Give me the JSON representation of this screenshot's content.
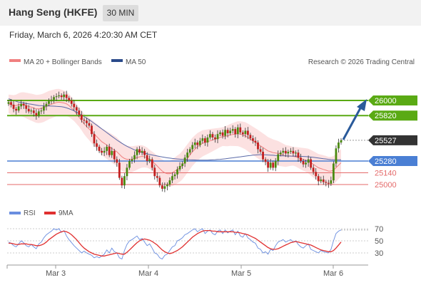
{
  "header": {
    "title": "Hang Seng (HKFE)",
    "timeframe": "30 MIN",
    "datetime": "Friday, March 6, 2026 4:20:30 AM CET"
  },
  "legend": {
    "bollinger": "MA 20 + Bollinger Bands",
    "ma50": "MA 50",
    "credit": "Research © 2026 Trading Central",
    "rsi": "RSI",
    "rsi_ma": "9MA"
  },
  "colors": {
    "bullish_level": "#5aaa14",
    "pivot_level": "#4a7fd4",
    "bearish_level": "#e46a6a",
    "current_price": "#333333",
    "candle_up": "#4a8a10",
    "candle_down": "#c22020",
    "ma50": "#5a6aa8",
    "bollinger_fill": "#fcdcdc",
    "rsi_line": "#6a8ee0",
    "rsi_ma_line": "#e03030",
    "arrow": "#2a5a9a"
  },
  "chart_data": [
    {
      "type": "candlestick",
      "x_tick_labels": [
        "Mar 3",
        "Mar 4",
        "Mar 5",
        "Mar 6"
      ],
      "y_range": [
        24850,
        26250
      ],
      "price_levels": [
        {
          "label": "26000",
          "value": 26000,
          "kind": "resistance"
        },
        {
          "label": "25820",
          "value": 25820,
          "kind": "resistance"
        },
        {
          "label": "25527",
          "value": 25527,
          "kind": "current"
        },
        {
          "label": "25280",
          "value": 25280,
          "kind": "pivot"
        },
        {
          "label": "25140",
          "value": 25140,
          "kind": "support"
        },
        {
          "label": "25000",
          "value": 25000,
          "kind": "support"
        }
      ],
      "series_close": [
        25980,
        25950,
        25900,
        25880,
        25930,
        25960,
        25940,
        25900,
        25870,
        25880,
        25850,
        25820,
        25870,
        25880,
        25930,
        25960,
        25990,
        26010,
        26040,
        26050,
        26060,
        26040,
        26070,
        26030,
        26000,
        25960,
        25920,
        25880,
        25830,
        25770,
        25760,
        25730,
        25700,
        25600,
        25490,
        25450,
        25400,
        25380,
        25400,
        25450,
        25350,
        25400,
        25300,
        25260,
        25080,
        24990,
        25100,
        25200,
        25280,
        25300,
        25350,
        25420,
        25380,
        25400,
        25350,
        25280,
        25300,
        25200,
        25100,
        25080,
        24990,
        24950,
        24980,
        25000,
        25050,
        25100,
        25120,
        25180,
        25220,
        25250,
        25320,
        25380,
        25420,
        25470,
        25500,
        25470,
        25520,
        25550,
        25500,
        25560,
        25600,
        25560,
        25540,
        25600,
        25620,
        25580,
        25650,
        25610,
        25640,
        25660,
        25600,
        25680,
        25620,
        25600,
        25640,
        25590,
        25550,
        25520,
        25500,
        25420,
        25390,
        25300,
        25270,
        25200,
        25260,
        25200,
        25280,
        25360,
        25380,
        25400,
        25370,
        25390,
        25400,
        25370,
        25380,
        25320,
        25280,
        25240,
        25260,
        25300,
        25200,
        25150,
        25100,
        25040,
        25060,
        25030,
        25020,
        25010,
        25050,
        25250,
        25430,
        25500,
        25527
      ],
      "series_ma20": [
        25960,
        25950,
        25940,
        25940,
        25950,
        25955,
        25950,
        25940,
        25930,
        25920,
        25910,
        25900,
        25900,
        25905,
        25915,
        25930,
        25945,
        25955,
        25965,
        25975,
        25980,
        25975,
        25970,
        25960,
        25940,
        25910,
        25880,
        25840,
        25800,
        25760,
        25720,
        25690,
        25660,
        25630,
        25600,
        25570,
        25540,
        25510,
        25490,
        25470,
        25450,
        25430,
        25410,
        25390,
        25360,
        25330,
        25310,
        25300,
        25300,
        25300,
        25310,
        25320,
        25330,
        25335,
        25330,
        25320,
        25300,
        25280,
        25250,
        25220,
        25190,
        25160,
        25140,
        25130,
        25130,
        25140,
        25160,
        25180,
        25200,
        25230,
        25270,
        25310,
        25350,
        25390,
        25420,
        25450,
        25470,
        25490,
        25500,
        25510,
        25520,
        25530,
        25540,
        25550,
        25560,
        25570,
        25575,
        25580,
        25590,
        25595,
        25600,
        25605,
        25600,
        25590,
        25580,
        25560,
        25540,
        25520,
        25500,
        25480,
        25460,
        25440,
        25420,
        25400,
        25390,
        25380,
        25375,
        25370,
        25360,
        25350,
        25340,
        25340,
        25340,
        25335,
        25330,
        25320,
        25310,
        25300,
        25290,
        25280,
        25260,
        25240,
        25220,
        25200,
        25190,
        25180,
        25170,
        25160,
        25160,
        25170,
        25200,
        25230,
        25260
      ],
      "series_ma50": [
        26020,
        26010,
        26000,
        25990,
        25980,
        25975,
        25970,
        25965,
        25960,
        25955,
        25950,
        25945,
        25940,
        25938,
        25936,
        25935,
        25934,
        25933,
        25932,
        25930,
        25928,
        25925,
        25920,
        25912,
        25902,
        25890,
        25876,
        25860,
        25844,
        25826,
        25808,
        25790,
        25770,
        25750,
        25728,
        25706,
        25684,
        25662,
        25640,
        25618,
        25596,
        25574,
        25552,
        25530,
        25510,
        25490,
        25472,
        25455,
        25440,
        25426,
        25412,
        25400,
        25390,
        25380,
        25372,
        25365,
        25358,
        25352,
        25346,
        25340,
        25334,
        25328,
        25323,
        25318,
        25314,
        25310,
        25307,
        25304,
        25302,
        25300,
        25298,
        25296,
        25294,
        25293,
        25292,
        25291,
        25290,
        25290,
        25290,
        25291,
        25292,
        25294,
        25296,
        25298,
        25300,
        25303,
        25306,
        25310,
        25314,
        25318,
        25322,
        25326,
        25330,
        25334,
        25338,
        25342,
        25346,
        25350,
        25352,
        25354,
        25355,
        25355,
        25354,
        25352,
        25350,
        25348,
        25346,
        25344,
        25342,
        25341,
        25340,
        25339,
        25338,
        25338,
        25338,
        25337,
        25336,
        25334,
        25332,
        25330,
        25327,
        25324,
        25320,
        25316,
        25312,
        25308,
        25304,
        25300,
        25297,
        25295,
        25294,
        25294,
        25295
      ]
    },
    {
      "type": "line",
      "name": "RSI",
      "y_tick_labels": [
        "70",
        "50",
        "30"
      ],
      "y_range": [
        10,
        90
      ],
      "series": [
        {
          "name": "RSI",
          "values": [
            48,
            46,
            42,
            40,
            45,
            50,
            47,
            42,
            40,
            44,
            40,
            37,
            45,
            48,
            55,
            60,
            63,
            66,
            70,
            68,
            70,
            64,
            67,
            58,
            52,
            47,
            42,
            38,
            34,
            30,
            33,
            30,
            28,
            26,
            22,
            24,
            22,
            25,
            28,
            35,
            30,
            38,
            32,
            30,
            22,
            20,
            34,
            44,
            50,
            52,
            55,
            58,
            52,
            54,
            48,
            42,
            45,
            38,
            30,
            28,
            22,
            20,
            26,
            28,
            34,
            40,
            42,
            50,
            52,
            55,
            60,
            62,
            65,
            68,
            70,
            65,
            68,
            70,
            62,
            66,
            68,
            62,
            60,
            66,
            68,
            62,
            68,
            63,
            66,
            68,
            60,
            66,
            58,
            56,
            62,
            55,
            52,
            48,
            46,
            38,
            36,
            30,
            32,
            28,
            36,
            34,
            42,
            48,
            50,
            52,
            48,
            50,
            52,
            48,
            50,
            44,
            40,
            38,
            42,
            45,
            36,
            34,
            32,
            30,
            34,
            32,
            31,
            30,
            36,
            50,
            62,
            66,
            68
          ]
        },
        {
          "name": "9MA",
          "values": [
            46,
            46,
            45,
            44,
            44,
            45,
            45,
            45,
            44,
            44,
            43,
            42,
            42,
            43,
            45,
            48,
            52,
            55,
            58,
            61,
            63,
            65,
            66,
            65,
            63,
            60,
            56,
            52,
            47,
            42,
            38,
            35,
            32,
            30,
            28,
            27,
            26,
            25,
            25,
            26,
            27,
            28,
            29,
            30,
            29,
            28,
            28,
            31,
            35,
            39,
            43,
            47,
            50,
            52,
            53,
            52,
            51,
            49,
            46,
            43,
            39,
            35,
            32,
            30,
            29,
            30,
            32,
            34,
            37,
            40,
            44,
            48,
            52,
            56,
            59,
            62,
            64,
            66,
            67,
            67,
            67,
            66,
            66,
            65,
            65,
            65,
            65,
            65,
            65,
            65,
            64,
            64,
            63,
            62,
            61,
            60,
            58,
            56,
            54,
            51,
            48,
            45,
            42,
            39,
            37,
            36,
            36,
            37,
            39,
            41,
            43,
            45,
            47,
            48,
            49,
            48,
            47,
            46,
            45,
            44,
            43,
            41,
            39,
            37,
            35,
            34,
            33,
            32,
            32,
            34,
            38,
            43,
            48
          ]
        }
      ]
    }
  ]
}
